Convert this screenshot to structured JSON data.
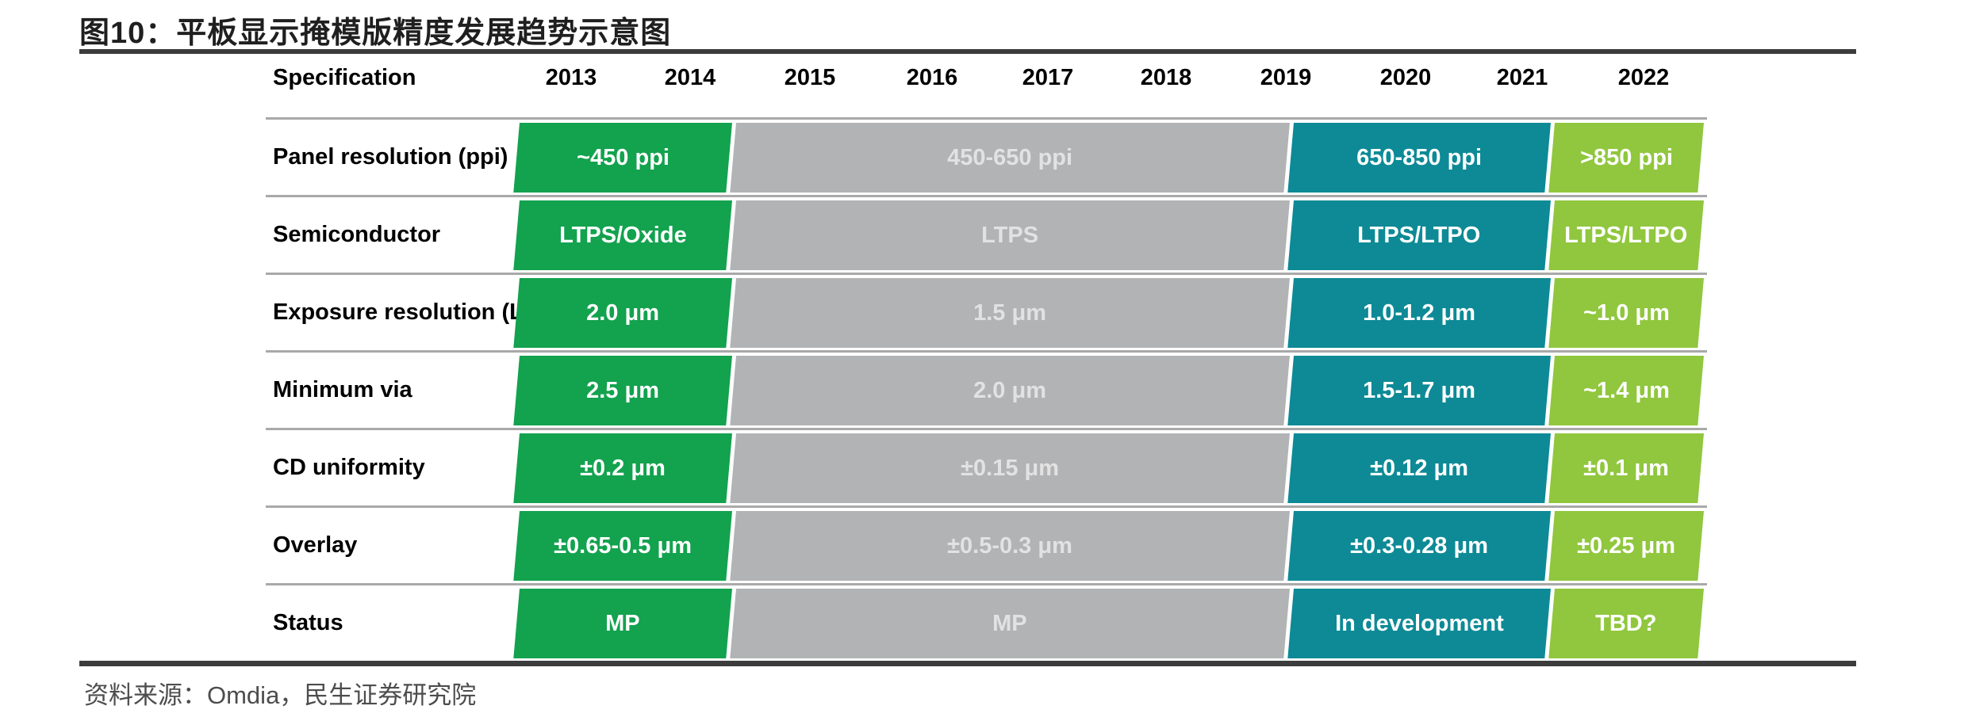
{
  "title": "图10：平板显示掩模版精度发展趋势示意图",
  "source": "资料来源：Omdia，民生证券研究院",
  "colors": {
    "rule": "#3c3c3c",
    "row_separator": "#a9a9a9",
    "phase_green": "#13a24e",
    "phase_gray": "#b2b3b5",
    "phase_teal": "#0d8a96",
    "phase_light_green": "#90c73e"
  },
  "chart_data": {
    "type": "table",
    "title": "图10：平板显示掩模版精度发展趋势示意图",
    "header": {
      "spec_label": "Specification",
      "years": [
        "2013",
        "2014",
        "2015",
        "2016",
        "2017",
        "2018",
        "2019",
        "2020",
        "2021",
        "2022"
      ]
    },
    "phases": [
      {
        "name": "phase-2013-2014",
        "year_span": "2013-2014",
        "color": "#13a24e",
        "text_color": "#ffffff"
      },
      {
        "name": "phase-2015-2019",
        "year_span": "2015-2019",
        "color": "#b2b3b5",
        "text_color": "#e2e2e2"
      },
      {
        "name": "phase-2020-2021",
        "year_span": "2020-2021",
        "color": "#0d8a96",
        "text_color": "#ffffff"
      },
      {
        "name": "phase-2022",
        "year_span": "2022",
        "color": "#90c73e",
        "text_color": "#ffffff"
      }
    ],
    "rows": [
      {
        "label": "Panel resolution (ppi)",
        "values": [
          "~450 ppi",
          "450-650 ppi",
          "650-850 ppi",
          ">850 ppi"
        ]
      },
      {
        "label": "Semiconductor",
        "values": [
          "LTPS/Oxide",
          "LTPS",
          "LTPS/LTPO",
          "LTPS/LTPO"
        ]
      },
      {
        "label": "Exposure resolution (L/S)",
        "values": [
          "2.0 μm",
          "1.5 μm",
          "1.0-1.2 μm",
          "~1.0 μm"
        ]
      },
      {
        "label": "Minimum via",
        "values": [
          "2.5 μm",
          "2.0 μm",
          "1.5-1.7 μm",
          "~1.4 μm"
        ]
      },
      {
        "label": "CD uniformity",
        "values": [
          "±0.2 μm",
          "±0.15 μm",
          "±0.12 μm",
          "±0.1 μm"
        ]
      },
      {
        "label": "Overlay",
        "values": [
          "±0.65-0.5 μm",
          "±0.5-0.3 μm",
          "±0.3-0.28 μm",
          "±0.25 μm"
        ]
      },
      {
        "label": "Status",
        "values": [
          "MP",
          "MP",
          "In development",
          "TBD?"
        ]
      }
    ],
    "legend_position": "none",
    "grid": "row-separators-only"
  }
}
